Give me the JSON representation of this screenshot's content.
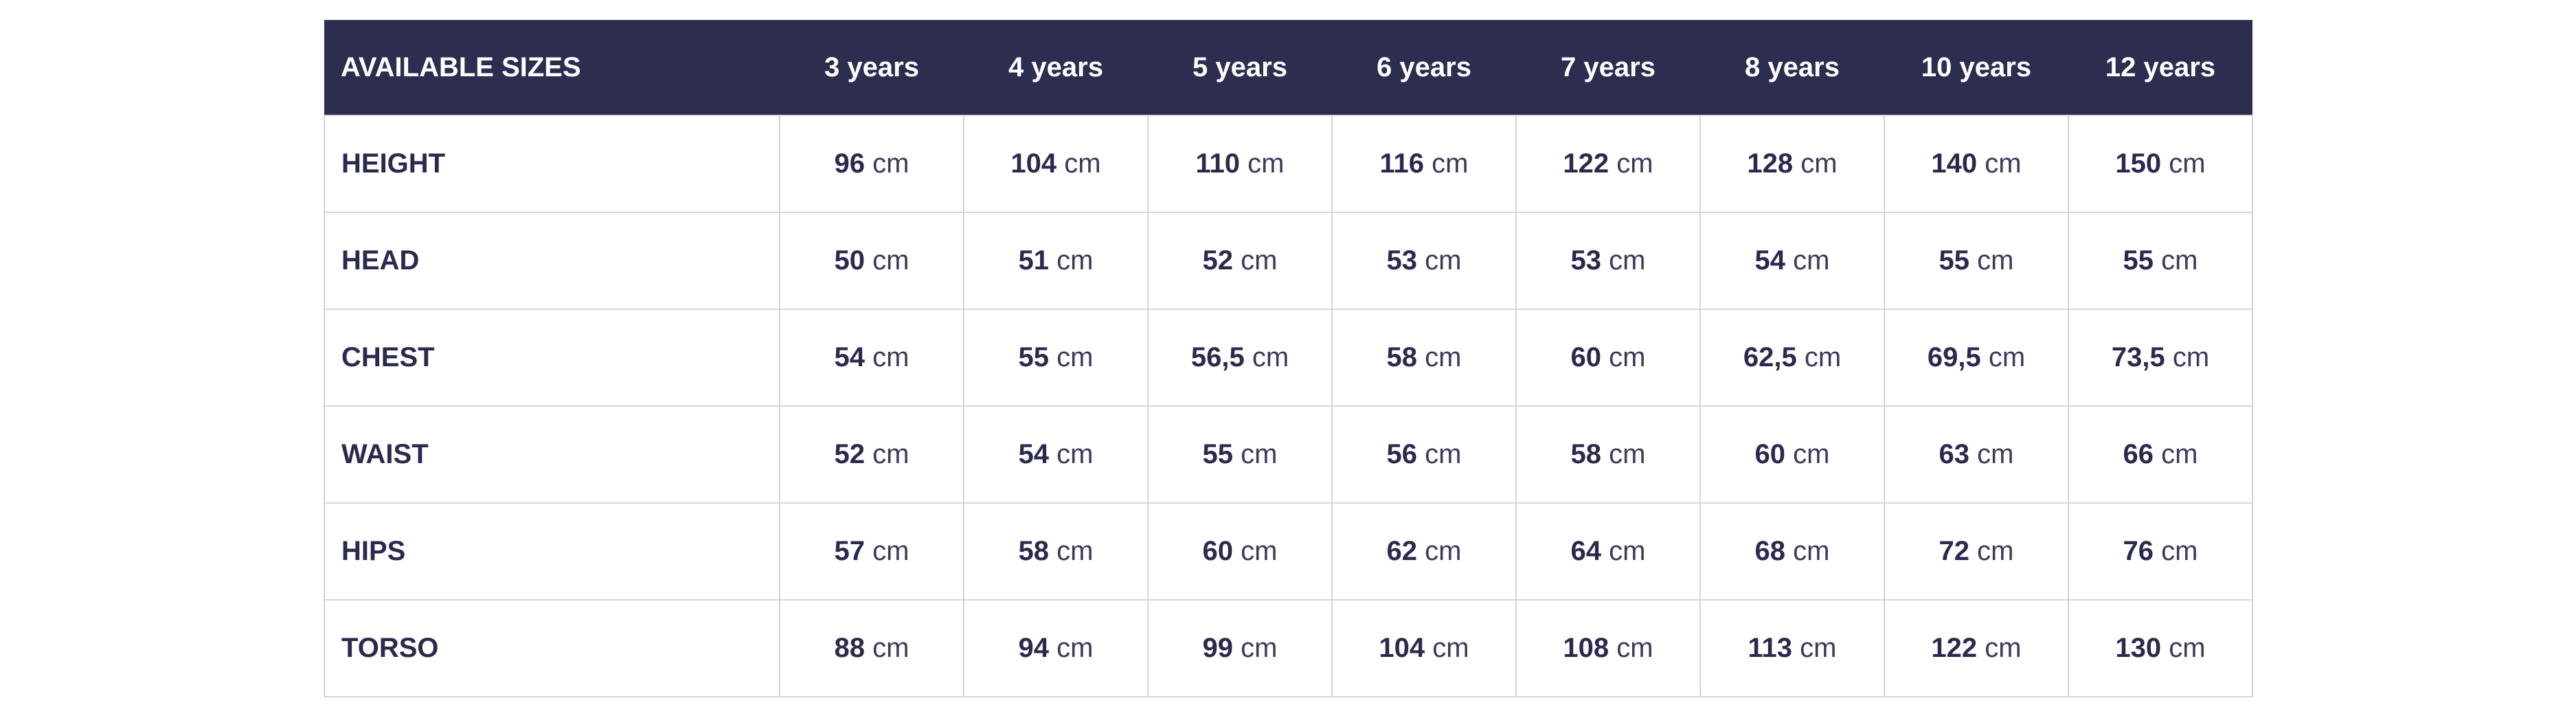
{
  "table": {
    "header_label": "AVAILABLE SIZES",
    "sizes": [
      "3 years",
      "4 years",
      "5 years",
      "6 years",
      "7 years",
      "8 years",
      "10 years",
      "12 years"
    ],
    "unit": "cm",
    "rows": [
      {
        "label": "HEIGHT",
        "values": [
          "96",
          "104",
          "110",
          "116",
          "122",
          "128",
          "140",
          "150"
        ]
      },
      {
        "label": "HEAD",
        "values": [
          "50",
          "51",
          "52",
          "53",
          "53",
          "54",
          "55",
          "55"
        ]
      },
      {
        "label": "CHEST",
        "values": [
          "54",
          "55",
          "56,5",
          "58",
          "60",
          "62,5",
          "69,5",
          "73,5"
        ]
      },
      {
        "label": "WAIST",
        "values": [
          "52",
          "54",
          "55",
          "56",
          "58",
          "60",
          "63",
          "66"
        ]
      },
      {
        "label": "HIPS",
        "values": [
          "57",
          "58",
          "60",
          "62",
          "64",
          "68",
          "72",
          "76"
        ]
      },
      {
        "label": "TORSO",
        "values": [
          "88",
          "94",
          "99",
          "104",
          "108",
          "113",
          "122",
          "130"
        ]
      }
    ],
    "colors": {
      "header_bg": "#2d2d50",
      "text": "#2a2a4e",
      "border": "#d6d6d6"
    }
  }
}
